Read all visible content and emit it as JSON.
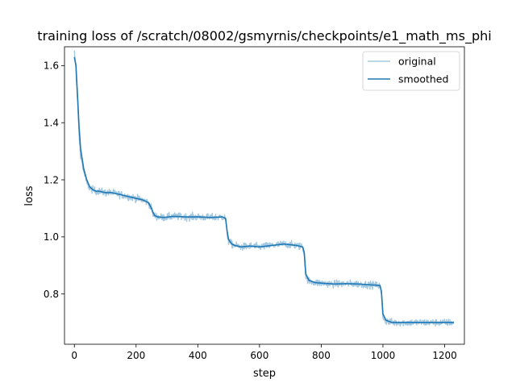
{
  "chart_data": {
    "type": "line",
    "title": "training loss of /scratch/08002/gsmyrnis/checkpoints/e1_math_ms_phi",
    "xlabel": "step",
    "ylabel": "loss",
    "xlim": [
      -32,
      1264
    ],
    "ylim": [
      0.624,
      1.666
    ],
    "xticks": [
      0,
      200,
      400,
      600,
      800,
      1000,
      1200
    ],
    "yticks": [
      0.8,
      1.0,
      1.2,
      1.4,
      1.6
    ],
    "xtick_labels": [
      "0",
      "200",
      "400",
      "600",
      "800",
      "1000",
      "1200"
    ],
    "ytick_labels": [
      "0.8",
      "1.0",
      "1.2",
      "1.4",
      "1.6"
    ],
    "grid": false,
    "legend_position": "top-right",
    "legend": [
      "original",
      "smoothed"
    ],
    "series": [
      {
        "name": "original",
        "color": "#1f77b4",
        "opacity": 0.4,
        "noise_amplitude": 0.012,
        "x": [
          0,
          5,
          10,
          15,
          20,
          30,
          40,
          50,
          60,
          70,
          80,
          100,
          120,
          150,
          180,
          200,
          220,
          240,
          250,
          255,
          260,
          270,
          290,
          320,
          360,
          400,
          440,
          480,
          490,
          495,
          500,
          510,
          520,
          540,
          570,
          600,
          640,
          680,
          720,
          740,
          745,
          750,
          760,
          780,
          800,
          840,
          880,
          920,
          960,
          990,
          995,
          1000,
          1010,
          1030,
          1060,
          1100,
          1150,
          1200,
          1230
        ],
        "y": [
          1.64,
          1.6,
          1.48,
          1.36,
          1.29,
          1.23,
          1.19,
          1.17,
          1.165,
          1.16,
          1.16,
          1.155,
          1.155,
          1.148,
          1.14,
          1.135,
          1.13,
          1.12,
          1.1,
          1.08,
          1.075,
          1.07,
          1.068,
          1.072,
          1.07,
          1.07,
          1.068,
          1.07,
          1.065,
          1.01,
          0.985,
          0.975,
          0.97,
          0.965,
          0.968,
          0.965,
          0.97,
          0.975,
          0.97,
          0.965,
          0.94,
          0.86,
          0.845,
          0.84,
          0.838,
          0.835,
          0.836,
          0.835,
          0.832,
          0.83,
          0.8,
          0.72,
          0.705,
          0.7,
          0.7,
          0.7,
          0.7,
          0.7,
          0.7
        ]
      },
      {
        "name": "smoothed",
        "color": "#1f77b4",
        "opacity": 1,
        "x": [
          0,
          5,
          10,
          15,
          20,
          30,
          40,
          50,
          60,
          70,
          80,
          100,
          120,
          150,
          180,
          200,
          220,
          240,
          250,
          255,
          260,
          270,
          290,
          320,
          360,
          400,
          440,
          480,
          490,
          495,
          500,
          510,
          520,
          540,
          570,
          600,
          640,
          680,
          720,
          740,
          745,
          750,
          760,
          780,
          800,
          840,
          880,
          920,
          960,
          990,
          995,
          1000,
          1010,
          1030,
          1060,
          1100,
          1150,
          1200,
          1230
        ],
        "y": [
          1.63,
          1.6,
          1.5,
          1.39,
          1.31,
          1.24,
          1.2,
          1.175,
          1.165,
          1.16,
          1.16,
          1.155,
          1.155,
          1.148,
          1.14,
          1.135,
          1.13,
          1.12,
          1.1,
          1.085,
          1.075,
          1.07,
          1.068,
          1.072,
          1.07,
          1.07,
          1.068,
          1.07,
          1.065,
          1.02,
          0.99,
          0.975,
          0.97,
          0.965,
          0.968,
          0.965,
          0.97,
          0.975,
          0.97,
          0.965,
          0.945,
          0.87,
          0.848,
          0.84,
          0.838,
          0.835,
          0.836,
          0.835,
          0.832,
          0.83,
          0.81,
          0.73,
          0.708,
          0.7,
          0.7,
          0.7,
          0.7,
          0.7,
          0.7
        ]
      }
    ]
  }
}
